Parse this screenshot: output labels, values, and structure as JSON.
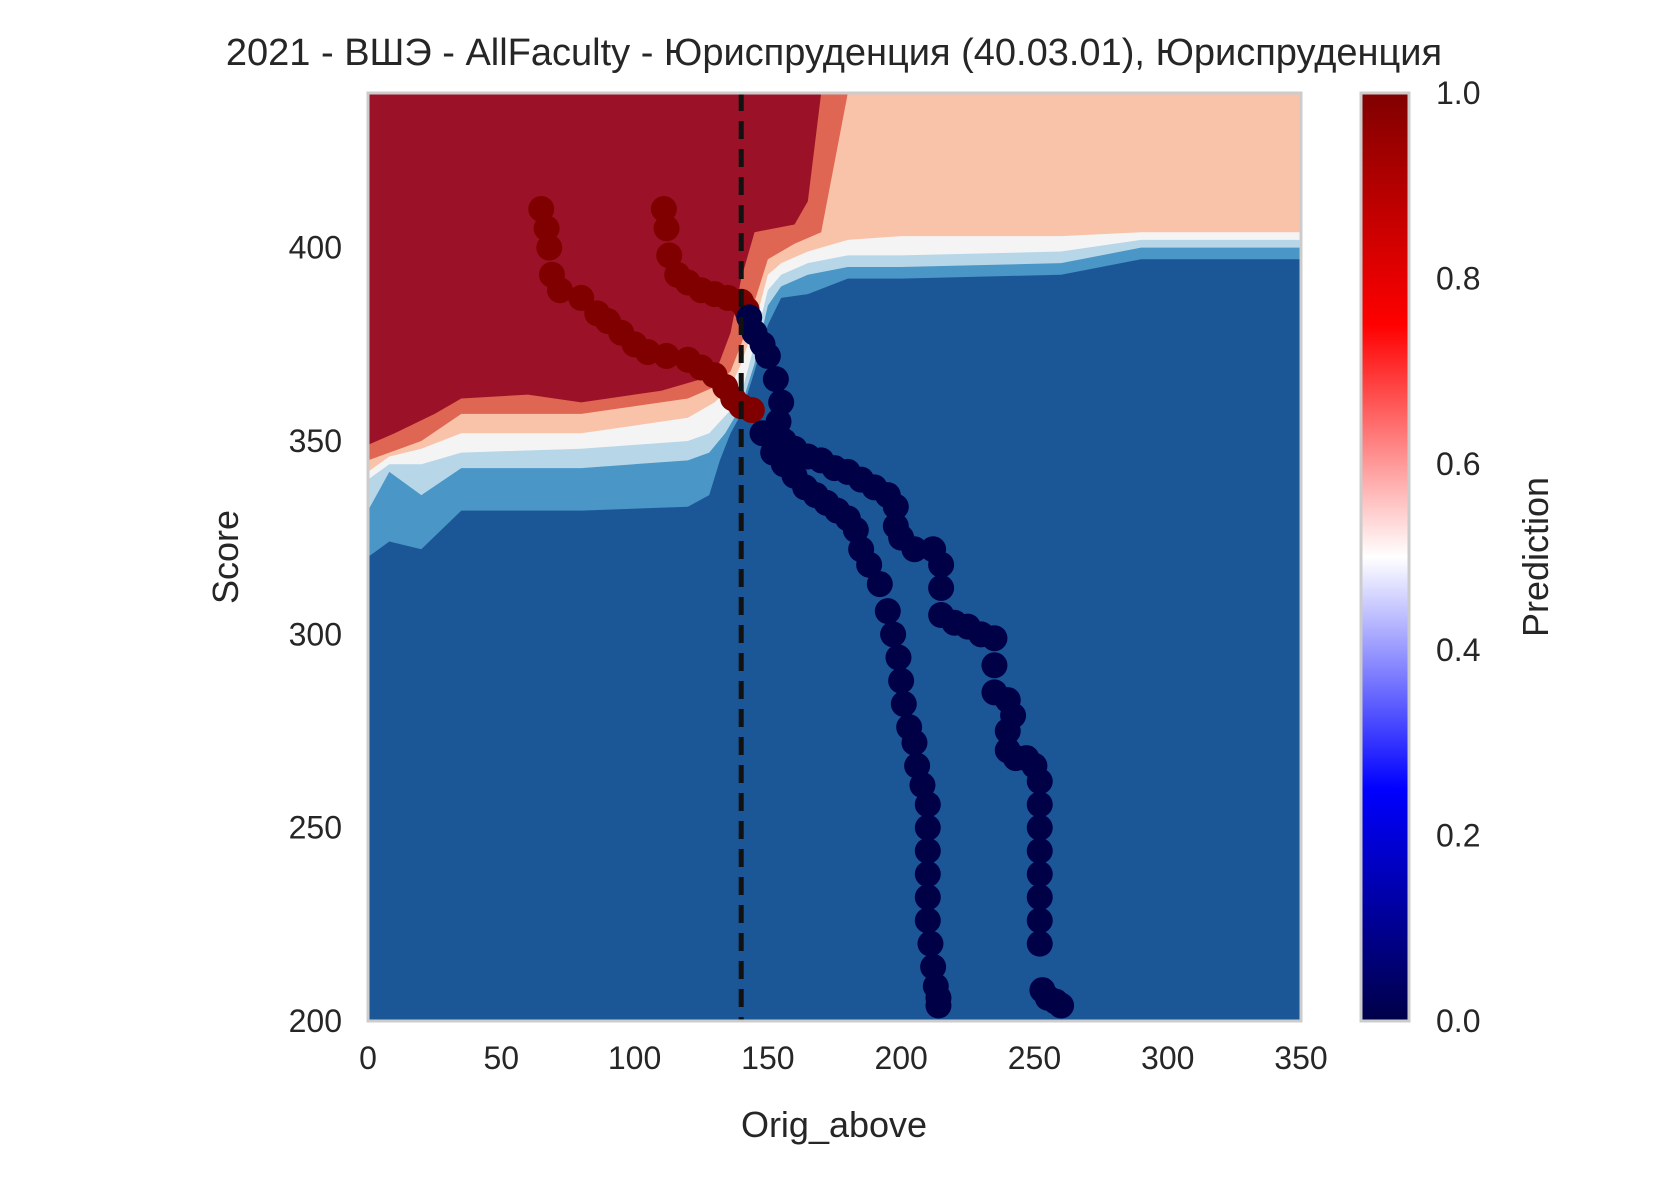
{
  "chart_data": {
    "type": "scatter",
    "title": "2021 - ВШЭ - AllFaculty - Юриспруденция (40.03.01), Юриспруденция",
    "xlabel": "Orig_above",
    "ylabel": "Score",
    "xlim": [
      0,
      350
    ],
    "ylim": [
      200,
      440
    ],
    "xticks": [
      0,
      50,
      100,
      150,
      200,
      250,
      300,
      350
    ],
    "yticks": [
      200,
      250,
      300,
      350,
      400
    ],
    "grid": false,
    "threshold_line": {
      "x": 140,
      "style": "dashed",
      "color": "#111111"
    },
    "colorbar": {
      "label": "Prediction",
      "range": [
        0,
        1
      ],
      "ticks": [
        0.0,
        0.2,
        0.4,
        0.6,
        0.8,
        1.0
      ],
      "tick_labels": [
        "0.0",
        "0.2",
        "0.4",
        "0.6",
        "0.8",
        "1.0"
      ],
      "colormap": "seismic",
      "colors": [
        "#000047",
        "#0000ff",
        "#ffffff",
        "#ff0000",
        "#800000"
      ]
    },
    "contour": {
      "levels": [
        0,
        0.15,
        0.3,
        0.45,
        0.55,
        0.7,
        0.85,
        1.0
      ],
      "band_colors": [
        "#1b5797",
        "#4a96c6",
        "#b7d6e8",
        "#f4f4f4",
        "#f9c3a9",
        "#de6652",
        "#9b1228"
      ],
      "boundaries": [
        {
          "level": 0.15,
          "points": [
            [
              0,
              320
            ],
            [
              8,
              324
            ],
            [
              20,
              322
            ],
            [
              35,
              332
            ],
            [
              80,
              332
            ],
            [
              120,
              333
            ],
            [
              128,
              336
            ],
            [
              132,
              345
            ],
            [
              136,
              352
            ],
            [
              140,
              357
            ],
            [
              145,
              368
            ],
            [
              150,
              380
            ],
            [
              155,
              387
            ],
            [
              165,
              388
            ],
            [
              180,
              392
            ],
            [
              200,
              392
            ],
            [
              260,
              393
            ],
            [
              290,
              397
            ],
            [
              350,
              397
            ]
          ]
        },
        {
          "level": 0.3,
          "points": [
            [
              0,
              332
            ],
            [
              8,
              342
            ],
            [
              20,
              336
            ],
            [
              35,
              343
            ],
            [
              80,
              343
            ],
            [
              120,
              345
            ],
            [
              128,
              347
            ],
            [
              134,
              352
            ],
            [
              140,
              359
            ],
            [
              145,
              370
            ],
            [
              150,
              385
            ],
            [
              155,
              390
            ],
            [
              165,
              393
            ],
            [
              180,
              395
            ],
            [
              200,
              395
            ],
            [
              260,
              396
            ],
            [
              290,
              400
            ],
            [
              350,
              400
            ]
          ]
        },
        {
          "level": 0.45,
          "points": [
            [
              0,
              340
            ],
            [
              8,
              344
            ],
            [
              20,
              344
            ],
            [
              35,
              347
            ],
            [
              80,
              348
            ],
            [
              120,
              350
            ],
            [
              128,
              352
            ],
            [
              136,
              358
            ],
            [
              140,
              362
            ],
            [
              145,
              375
            ],
            [
              150,
              389
            ],
            [
              155,
              393
            ],
            [
              165,
              396
            ],
            [
              180,
              398
            ],
            [
              200,
              398
            ],
            [
              260,
              399
            ],
            [
              290,
              402
            ],
            [
              350,
              402
            ]
          ]
        },
        {
          "level": 0.55,
          "points": [
            [
              0,
              342
            ],
            [
              8,
              346
            ],
            [
              20,
              348
            ],
            [
              35,
              352
            ],
            [
              80,
              352
            ],
            [
              120,
              356
            ],
            [
              130,
              360
            ],
            [
              136,
              364
            ],
            [
              140,
              370
            ],
            [
              145,
              380
            ],
            [
              150,
              393
            ],
            [
              155,
              396
            ],
            [
              165,
              399
            ],
            [
              180,
              402
            ],
            [
              200,
              403
            ],
            [
              260,
              403
            ],
            [
              290,
              404
            ],
            [
              350,
              404
            ]
          ]
        },
        {
          "level": 0.7,
          "points": [
            [
              0,
              345
            ],
            [
              8,
              347
            ],
            [
              20,
              350
            ],
            [
              35,
              357
            ],
            [
              80,
              357
            ],
            [
              120,
              361
            ],
            [
              130,
              364
            ],
            [
              136,
              368
            ],
            [
              140,
              375
            ],
            [
              145,
              386
            ],
            [
              150,
              397
            ],
            [
              160,
              401
            ],
            [
              170,
              404
            ],
            [
              180,
              440
            ]
          ]
        },
        {
          "level": 0.85,
          "points": [
            [
              0,
              349
            ],
            [
              10,
              352
            ],
            [
              25,
              357
            ],
            [
              35,
              361
            ],
            [
              60,
              362
            ],
            [
              80,
              360
            ],
            [
              110,
              363
            ],
            [
              130,
              367
            ],
            [
              136,
              378
            ],
            [
              140,
              392
            ],
            [
              145,
              404
            ],
            [
              160,
              406
            ],
            [
              165,
              412
            ],
            [
              170,
              440
            ]
          ]
        }
      ]
    },
    "series": [
      {
        "color": "#800000",
        "points": [
          [
            65,
            410
          ],
          [
            67,
            405
          ],
          [
            68,
            400
          ],
          [
            69,
            393
          ],
          [
            72,
            389
          ],
          [
            80,
            387
          ],
          [
            86,
            383
          ],
          [
            90,
            381
          ],
          [
            95,
            378
          ],
          [
            100,
            375
          ],
          [
            105,
            373
          ],
          [
            112,
            372
          ],
          [
            120,
            371
          ],
          [
            125,
            369
          ],
          [
            130,
            367
          ],
          [
            134,
            364
          ],
          [
            137,
            361
          ],
          [
            140,
            359
          ],
          [
            144,
            358
          ]
        ]
      },
      {
        "color": "#800000",
        "points": [
          [
            111,
            410
          ],
          [
            112,
            405
          ],
          [
            113,
            398
          ],
          [
            116,
            393
          ],
          [
            120,
            391
          ],
          [
            125,
            389
          ],
          [
            130,
            388
          ],
          [
            135,
            387
          ],
          [
            140,
            386
          ],
          [
            142,
            384
          ]
        ]
      },
      {
        "color": "#000047",
        "points": [
          [
            143,
            382
          ],
          [
            145,
            378
          ],
          [
            148,
            375
          ],
          [
            150,
            372
          ],
          [
            153,
            366
          ],
          [
            155,
            360
          ],
          [
            154,
            355
          ],
          [
            153,
            352
          ],
          [
            156,
            350
          ],
          [
            160,
            348
          ],
          [
            165,
            346
          ],
          [
            170,
            345
          ],
          [
            175,
            343
          ],
          [
            180,
            342
          ],
          [
            185,
            340
          ],
          [
            190,
            338
          ],
          [
            195,
            336
          ],
          [
            198,
            333
          ],
          [
            198,
            328
          ],
          [
            200,
            325
          ],
          [
            205,
            322
          ],
          [
            212,
            322
          ],
          [
            215,
            318
          ],
          [
            215,
            312
          ],
          [
            215,
            305
          ],
          [
            220,
            303
          ],
          [
            225,
            302
          ],
          [
            230,
            300
          ],
          [
            235,
            299
          ],
          [
            235,
            292
          ],
          [
            235,
            285
          ],
          [
            240,
            283
          ],
          [
            242,
            279
          ],
          [
            240,
            275
          ],
          [
            240,
            270
          ],
          [
            243,
            268
          ],
          [
            247,
            268
          ],
          [
            250,
            266
          ],
          [
            252,
            262
          ],
          [
            252,
            256
          ],
          [
            252,
            250
          ],
          [
            252,
            244
          ],
          [
            252,
            238
          ],
          [
            252,
            232
          ],
          [
            252,
            226
          ],
          [
            252,
            220
          ],
          [
            253,
            208
          ],
          [
            255,
            206
          ],
          [
            258,
            205
          ],
          [
            260,
            204
          ]
        ]
      },
      {
        "color": "#000047",
        "points": [
          [
            148,
            352
          ],
          [
            152,
            347
          ],
          [
            156,
            344
          ],
          [
            160,
            341
          ],
          [
            164,
            338
          ],
          [
            168,
            336
          ],
          [
            172,
            334
          ],
          [
            176,
            332
          ],
          [
            180,
            330
          ],
          [
            183,
            327
          ],
          [
            185,
            322
          ],
          [
            188,
            318
          ],
          [
            192,
            313
          ],
          [
            195,
            306
          ],
          [
            197,
            300
          ],
          [
            199,
            294
          ],
          [
            200,
            288
          ],
          [
            201,
            282
          ],
          [
            203,
            276
          ],
          [
            205,
            272
          ],
          [
            206,
            266
          ],
          [
            208,
            261
          ],
          [
            210,
            256
          ],
          [
            210,
            250
          ],
          [
            210,
            244
          ],
          [
            210,
            238
          ],
          [
            210,
            232
          ],
          [
            210,
            226
          ],
          [
            211,
            220
          ],
          [
            212,
            214
          ],
          [
            213,
            209
          ],
          [
            214,
            206
          ],
          [
            214,
            204
          ]
        ]
      }
    ]
  }
}
